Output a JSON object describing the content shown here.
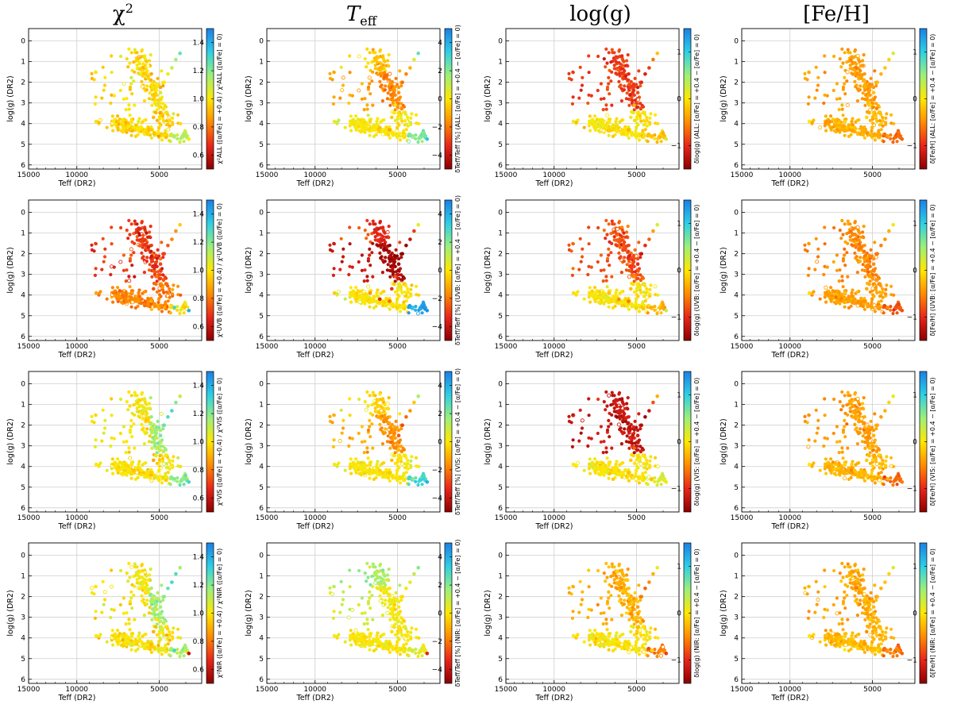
{
  "column_titles": [
    "χ²",
    "Teff",
    "log(g)",
    "[Fe/H]"
  ],
  "row_names": [
    "ALL",
    "UVB",
    "VIS",
    "NIR"
  ],
  "colormap": [
    "#8b0000",
    "#e8261b",
    "#ff8c00",
    "#ffe800",
    "#9df07a",
    "#2ecfe5",
    "#1b7fe6"
  ],
  "chart_data": {
    "type": "scatter",
    "layout": "4x4 grid of Kiel diagrams",
    "xlabel": "Teff  (DR2)",
    "ylabel": "log(g)  (DR2)",
    "x_reversed": true,
    "y_reversed": true,
    "xlim": [
      15000,
      3500
    ],
    "ylim": [
      6.2,
      -0.6
    ],
    "xticks": [
      15000,
      10000,
      5000
    ],
    "yticks": [
      0,
      1,
      2,
      3,
      4,
      5,
      6
    ],
    "grid": true,
    "colorbars": {
      "chi2": {
        "range": [
          0.5,
          1.5
        ],
        "ticks": [
          0.6,
          0.8,
          1.0,
          1.2,
          1.4
        ],
        "labels": [
          "0.6",
          "0.8",
          "1.0",
          "1.2",
          "1.4"
        ]
      },
      "teff": {
        "range": [
          -5,
          5
        ],
        "ticks": [
          -4,
          -2,
          0,
          2,
          4
        ],
        "labels": [
          "−4",
          "−2",
          "0",
          "2",
          "4"
        ]
      },
      "logg": {
        "range": [
          -1.5,
          1.5
        ],
        "ticks": [
          -1,
          0,
          1
        ],
        "labels": [
          "−1",
          "0",
          "1"
        ]
      },
      "feh": {
        "range": [
          -1.5,
          1.5
        ],
        "ticks": [
          -1,
          0,
          1
        ],
        "labels": [
          "−1",
          "0",
          "1"
        ]
      }
    },
    "colorbar_labels": [
      [
        "χ²ALL ([α/Fe] = +0.4) / χ²ALL ([α/Fe] = 0)",
        "δTeff/Teff [%]   (ALL: [α/Fe] = +0.4 − [α/Fe] = 0)",
        "δlog(g)   (ALL: [α/Fe] = +0.4 − [α/Fe] = 0)",
        "δ[Fe/H]   (ALL: [α/Fe] = +0.4 − [α/Fe] = 0)"
      ],
      [
        "χ²UVB ([α/Fe] = +0.4) / χ²UVB ([α/Fe] = 0)",
        "δTeff/Teff [%]   (UVB: [α/Fe] = +0.4 − [α/Fe] = 0)",
        "δlog(g)   (UVB: [α/Fe] = +0.4 − [α/Fe] = 0)",
        "δ[Fe/H]   (UVB: [α/Fe] = +0.4 − [α/Fe] = 0)"
      ],
      [
        "χ²VIS ([α/Fe] = +0.4) / χ²VIS ([α/Fe] = 0)",
        "δTeff/Teff [%]   (VIS: [α/Fe] = +0.4 − [α/Fe] = 0)",
        "δlog(g)   (VIS: [α/Fe] = +0.4 − [α/Fe] = 0)",
        "δ[Fe/H]   (VIS: [α/Fe] = +0.4 − [α/Fe] = 0)"
      ],
      [
        "χ²NIR ([α/Fe] = +0.4) / χ²NIR ([α/Fe] = 0)",
        "δTeff/Teff [%]   (NIR: [α/Fe] = +0.4 − [α/Fe] = 0)",
        "δlog(g)   (NIR: [α/Fe] = +0.4 − [α/Fe] = 0)",
        "δ[Fe/H]   (NIR: [α/Fe] = +0.4 − [α/Fe] = 0)"
      ]
    ],
    "stars": [
      {
        "teff": 5250,
        "logg": 3.7,
        "color_values": [
          [
            0.92,
            -0.5,
            0.1,
            -0.08
          ],
          [
            0.74,
            -3.1,
            -0.22,
            -0.34
          ],
          [
            0.88,
            -0.8,
            -0.17,
            -0.16
          ],
          [
            0.9,
            -0.2,
            0.12,
            -0.5
          ]
        ]
      },
      {
        "teff": 5100,
        "logg": 3.1,
        "color_values": [
          [
            1.05,
            0.2,
            -0.3,
            -0.1
          ],
          [
            0.8,
            -2.5,
            -0.5,
            -0.4
          ],
          [
            1.1,
            -1.8,
            -0.7,
            -0.2
          ],
          [
            1.0,
            0.3,
            -0.2,
            -0.15
          ]
        ]
      },
      {
        "teff": 4950,
        "logg": 2.5,
        "color_values": [
          [
            1.08,
            -1.5,
            -0.8,
            -0.2
          ],
          [
            0.72,
            -4.6,
            -1.0,
            -0.5
          ],
          [
            1.22,
            -2.5,
            -1.1,
            -0.3
          ],
          [
            1.15,
            0.1,
            -0.4,
            -0.25
          ]
        ]
      },
      {
        "teff": 4800,
        "logg": 2.0,
        "color_values": [
          [
            1.0,
            -2.1,
            -1.0,
            -0.25
          ],
          [
            0.7,
            -4.9,
            -1.2,
            -0.6
          ],
          [
            1.25,
            -2.8,
            -1.3,
            -0.35
          ],
          [
            1.2,
            -0.2,
            -0.6,
            -0.3
          ]
        ]
      },
      {
        "teff": 4650,
        "logg": 1.6,
        "color_values": [
          [
            1.02,
            -1.8,
            -1.1,
            -0.3
          ],
          [
            0.75,
            -4.8,
            -1.0,
            -0.55
          ],
          [
            1.28,
            -2.2,
            -1.4,
            -0.4
          ],
          [
            1.25,
            0.2,
            -0.7,
            -0.3
          ]
        ]
      },
      {
        "teff": 4500,
        "logg": 1.3,
        "color_values": [
          [
            1.1,
            -1.0,
            -0.9,
            -0.2
          ],
          [
            0.82,
            -4.0,
            -0.7,
            -0.45
          ],
          [
            1.3,
            -1.5,
            -1.2,
            -0.3
          ],
          [
            1.3,
            0.5,
            -0.5,
            -0.2
          ]
        ]
      },
      {
        "teff": 4350,
        "logg": 0.9,
        "color_values": [
          [
            1.15,
            0.5,
            -0.6,
            -0.1
          ],
          [
            0.85,
            -3.0,
            -0.4,
            -0.3
          ],
          [
            1.2,
            -0.6,
            -0.8,
            -0.1
          ],
          [
            1.28,
            1.0,
            -0.3,
            -0.1
          ]
        ]
      },
      {
        "teff": 4200,
        "logg": 0.6,
        "color_values": [
          [
            1.25,
            2.5,
            -0.2,
            0.2
          ],
          [
            0.95,
            0.5,
            0.2,
            0.1
          ],
          [
            1.1,
            1.5,
            -0.3,
            0.1
          ],
          [
            1.15,
            2.0,
            0.1,
            0.2
          ]
        ]
      },
      {
        "teff": 5350,
        "logg": 4.3,
        "color_values": [
          [
            0.95,
            -1.2,
            -0.3,
            -0.3
          ],
          [
            0.9,
            -2.2,
            -0.6,
            -0.5
          ],
          [
            0.95,
            -0.7,
            -0.2,
            -0.25
          ],
          [
            0.92,
            -0.3,
            -0.1,
            -0.45
          ]
        ]
      },
      {
        "teff": 5800,
        "logg": 4.2,
        "color_values": [
          [
            1.0,
            -0.8,
            -0.1,
            -0.2
          ],
          [
            0.8,
            -3.5,
            -0.5,
            -0.4
          ],
          [
            1.0,
            -0.5,
            -0.1,
            -0.2
          ],
          [
            1.0,
            0.0,
            0.0,
            -0.3
          ]
        ]
      },
      {
        "teff": 6300,
        "logg": 3.9,
        "color_values": [
          [
            1.0,
            -0.3,
            0.0,
            -0.1
          ],
          [
            0.85,
            -1.5,
            -0.2,
            -0.2
          ],
          [
            1.0,
            -0.2,
            0.0,
            -0.1
          ],
          [
            1.0,
            0.0,
            0.0,
            -0.15
          ]
        ]
      },
      {
        "teff": 4400,
        "logg": 4.6,
        "color_values": [
          [
            1.15,
            1.8,
            -0.2,
            -0.4
          ],
          [
            1.3,
            3.5,
            -0.3,
            -0.5
          ],
          [
            1.2,
            2.0,
            -0.2,
            -0.3
          ],
          [
            1.3,
            1.0,
            -0.1,
            -0.4
          ]
        ]
      },
      {
        "teff": 3900,
        "logg": 4.75,
        "color_values": [
          [
            1.0,
            3.5,
            0.2,
            -0.7
          ],
          [
            1.4,
            4.6,
            0.3,
            -0.8
          ],
          [
            1.3,
            4.0,
            0.1,
            -0.6
          ],
          [
            0.6,
            -3.5,
            -0.9,
            -0.7
          ]
        ]
      },
      {
        "teff": 8500,
        "logg": 3.9,
        "color_values": [
          [
            0.98,
            0.2,
            0.05,
            0.0
          ],
          [
            0.88,
            -0.5,
            -0.05,
            -0.05
          ],
          [
            1.0,
            0.1,
            0.0,
            0.0
          ],
          [
            1.0,
            0.0,
            0.0,
            0.0
          ]
        ]
      }
    ]
  }
}
